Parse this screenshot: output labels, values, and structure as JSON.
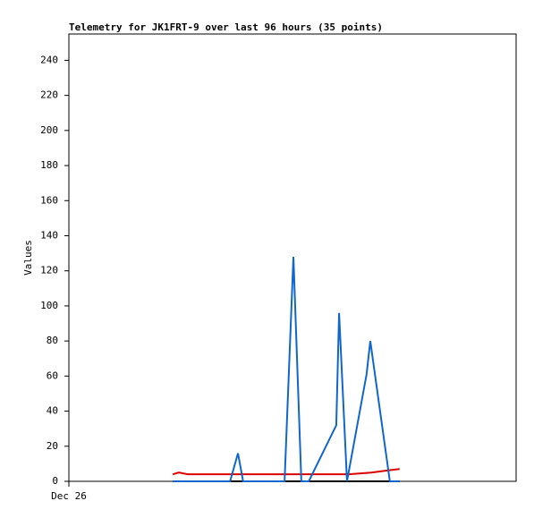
{
  "chart_data": {
    "type": "line",
    "title": "Telemetry for JK1FRT-9 over last 96 hours (35 points)",
    "y_label": "Values",
    "xlim": [
      0,
      96
    ],
    "xticks": [
      {
        "value": 0,
        "label": "Dec 26"
      }
    ],
    "ylim": [
      0,
      255
    ],
    "yticks": [
      0,
      20,
      40,
      60,
      80,
      100,
      120,
      140,
      160,
      180,
      200,
      220,
      240
    ],
    "grid": false,
    "series": [
      {
        "color": "#000000",
        "x": [
          22.3,
          71.0
        ],
        "values": [
          0,
          0
        ]
      },
      {
        "color": "#dd0000",
        "x": [
          22.3,
          23.6,
          25.5,
          60.1,
          64.9,
          67.8,
          69.3,
          71.0
        ],
        "values": [
          4,
          5,
          4,
          4,
          5,
          6,
          6.5,
          7
        ]
      },
      {
        "color": "#1166cc",
        "x": [
          22.3,
          34.6,
          36.3,
          37.4,
          46.3,
          48.2,
          49.9,
          51.5,
          57.4,
          58.0,
          59.7,
          63.9,
          64.7,
          68.9,
          71.0
        ],
        "values": [
          0,
          0,
          16,
          0,
          0,
          128,
          0,
          0,
          32,
          96,
          0,
          61,
          80,
          0,
          0
        ]
      }
    ]
  }
}
